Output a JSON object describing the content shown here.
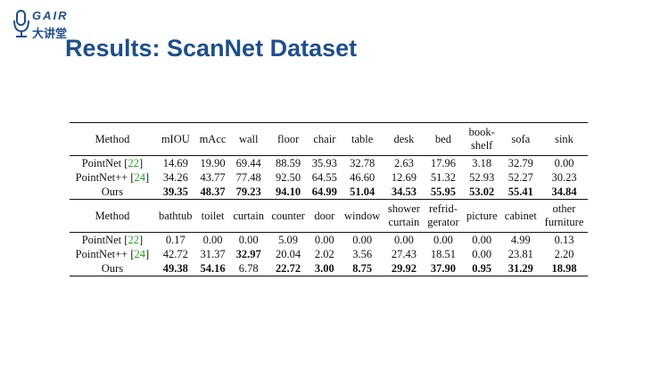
{
  "logo": {
    "text_en": "GAIR",
    "text_cn": "大讲堂",
    "icon": "microphone-icon",
    "color": "#1f4f8a"
  },
  "title": "Results: ScanNet Dataset",
  "colors": {
    "title": "#1f4f8a",
    "citation": "#1fa51f"
  },
  "table1": {
    "headers": [
      "Method",
      "mIOU",
      "mAcc",
      "wall",
      "floor",
      "chair",
      "table",
      "desk",
      "bed",
      [
        "book-",
        "shelf"
      ],
      "sofa",
      "sink"
    ],
    "rows": [
      {
        "method": "PointNet",
        "ref": "22",
        "values": [
          "14.69",
          "19.90",
          "69.44",
          "88.59",
          "35.93",
          "32.78",
          "2.63",
          "17.96",
          "3.18",
          "32.79",
          "0.00"
        ]
      },
      {
        "method": "PointNet++",
        "ref": "24",
        "values": [
          "34.26",
          "43.77",
          "77.48",
          "92.50",
          "64.55",
          "46.60",
          "12.69",
          "51.32",
          "52.93",
          "52.27",
          "30.23"
        ]
      },
      {
        "method": "Ours",
        "ref": "",
        "values": [
          "39.35",
          "48.37",
          "79.23",
          "94.10",
          "64.99",
          "51.04",
          "34.53",
          "55.95",
          "53.02",
          "55.41",
          "34.84"
        ]
      }
    ]
  },
  "table2": {
    "headers": [
      "Method",
      "bathtub",
      "toilet",
      "curtain",
      "counter",
      "door",
      "window",
      [
        "shower",
        "curtain"
      ],
      [
        "refrid-",
        "gerator"
      ],
      "picture",
      "cabinet",
      [
        "other",
        "furniture"
      ]
    ],
    "rows": [
      {
        "method": "PointNet",
        "ref": "22",
        "values": [
          "0.17",
          "0.00",
          "0.00",
          "5.09",
          "0.00",
          "0.00",
          "0.00",
          "0.00",
          "0.00",
          "4.99",
          "0.13"
        ]
      },
      {
        "method": "PointNet++",
        "ref": "24",
        "values": [
          "42.72",
          "31.37",
          "32.97",
          "20.04",
          "2.02",
          "3.56",
          "27.43",
          "18.51",
          "0.00",
          "23.81",
          "2.20"
        ]
      },
      {
        "method": "Ours",
        "ref": "",
        "values": [
          "49.38",
          "54.16",
          "6.78",
          "22.72",
          "3.00",
          "8.75",
          "29.92",
          "37.90",
          "0.95",
          "31.29",
          "18.98"
        ]
      }
    ]
  }
}
